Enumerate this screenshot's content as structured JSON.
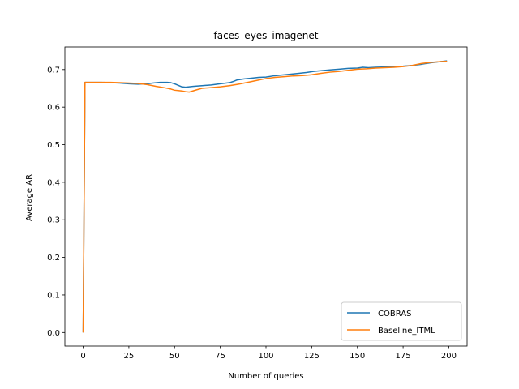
{
  "chart_data": {
    "type": "line",
    "title": "faces_eyes_imagenet",
    "xlabel": "Number of queries",
    "ylabel": "Average ARI",
    "xlim": [
      -10,
      210
    ],
    "ylim": [
      -0.036,
      0.76
    ],
    "xticks": [
      0,
      25,
      50,
      75,
      100,
      125,
      150,
      175,
      200
    ],
    "yticks": [
      0.0,
      0.1,
      0.2,
      0.3,
      0.4,
      0.5,
      0.6,
      0.7
    ],
    "ytick_labels": [
      "0.0",
      "0.1",
      "0.2",
      "0.3",
      "0.4",
      "0.5",
      "0.6",
      "0.7"
    ],
    "grid": false,
    "legend": "lower right",
    "series": [
      {
        "name": "COBRAS",
        "color": "#1f77b4",
        "x": [
          0,
          1,
          5,
          10,
          15,
          20,
          25,
          30,
          35,
          38,
          42,
          46,
          48,
          50,
          52,
          54,
          56,
          58,
          60,
          62,
          65,
          70,
          75,
          80,
          82,
          84,
          88,
          92,
          96,
          100,
          104,
          108,
          112,
          118,
          122,
          126,
          130,
          135,
          140,
          145,
          150,
          153,
          156,
          160,
          165,
          170,
          175,
          180,
          185,
          190,
          195,
          199
        ],
        "y": [
          0.0,
          0.666,
          0.666,
          0.666,
          0.665,
          0.664,
          0.662,
          0.661,
          0.662,
          0.664,
          0.666,
          0.666,
          0.665,
          0.662,
          0.658,
          0.654,
          0.653,
          0.654,
          0.655,
          0.656,
          0.657,
          0.659,
          0.662,
          0.665,
          0.668,
          0.672,
          0.675,
          0.677,
          0.679,
          0.68,
          0.683,
          0.685,
          0.687,
          0.69,
          0.692,
          0.695,
          0.697,
          0.699,
          0.701,
          0.703,
          0.704,
          0.706,
          0.705,
          0.706,
          0.707,
          0.708,
          0.709,
          0.711,
          0.714,
          0.718,
          0.721,
          0.723
        ]
      },
      {
        "name": "Baseline_ITML",
        "color": "#ff7f0e",
        "x": [
          0,
          1,
          5,
          10,
          15,
          20,
          25,
          30,
          35,
          40,
          44,
          48,
          50,
          52,
          54,
          56,
          58,
          60,
          62,
          65,
          70,
          75,
          80,
          85,
          90,
          95,
          100,
          105,
          110,
          115,
          120,
          125,
          130,
          135,
          140,
          145,
          150,
          155,
          160,
          165,
          170,
          175,
          180,
          185,
          190,
          195,
          199
        ],
        "y": [
          0.0,
          0.666,
          0.666,
          0.666,
          0.666,
          0.665,
          0.664,
          0.663,
          0.66,
          0.655,
          0.652,
          0.648,
          0.645,
          0.644,
          0.643,
          0.641,
          0.64,
          0.643,
          0.646,
          0.65,
          0.652,
          0.654,
          0.657,
          0.661,
          0.666,
          0.671,
          0.676,
          0.679,
          0.681,
          0.683,
          0.684,
          0.686,
          0.69,
          0.693,
          0.695,
          0.698,
          0.701,
          0.702,
          0.704,
          0.705,
          0.706,
          0.708,
          0.711,
          0.716,
          0.719,
          0.721,
          0.722
        ]
      }
    ]
  }
}
